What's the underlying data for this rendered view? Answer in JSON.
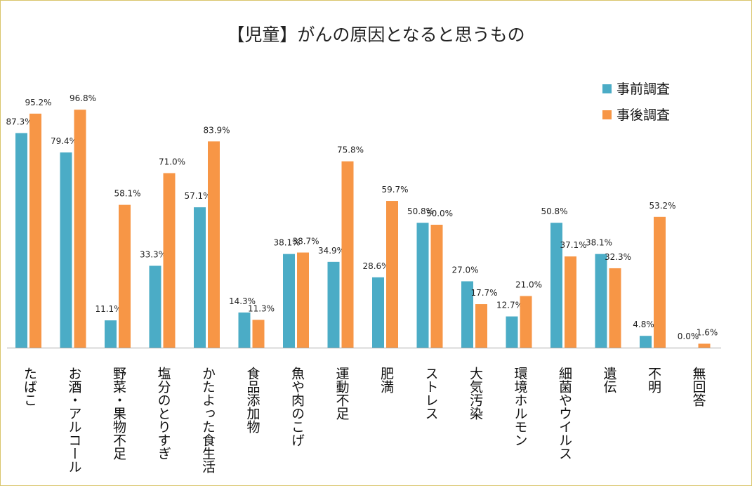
{
  "chart_data": {
    "type": "bar",
    "title": "【児童】がんの原因となると思うもの",
    "xlabel": "",
    "ylabel": "",
    "ylim": [
      0,
      100
    ],
    "grid": false,
    "legend": "top-right",
    "categories": [
      "たばこ",
      "お酒・アルコール",
      "野菜・果物不足",
      "塩分のとりすぎ",
      "かたよった食生活",
      "食品添加物",
      "魚や肉のこげ",
      "運動不足",
      "肥満",
      "ストレス",
      "大気汚染",
      "環境ホルモン",
      "細菌やウイルス",
      "遺伝",
      "不明",
      "無回答"
    ],
    "series": [
      {
        "name": "事前調査",
        "color": "#4bacc6",
        "values": [
          87.3,
          79.4,
          11.1,
          33.3,
          57.1,
          14.3,
          38.1,
          34.9,
          28.6,
          50.8,
          27.0,
          12.7,
          50.8,
          38.1,
          4.8,
          0.0
        ],
        "labels": [
          "87.3%",
          "79.4%",
          "11.1%",
          "33.3%",
          "57.1%",
          "14.3%",
          "38.1%",
          "34.9%",
          "28.6%",
          "50.8%",
          "27.0%",
          "12.7%",
          "50.8%",
          "38.1%",
          "4.8%",
          "0.0%"
        ]
      },
      {
        "name": "事後調査",
        "color": "#f79646",
        "values": [
          95.2,
          96.8,
          58.1,
          71.0,
          83.9,
          11.3,
          38.7,
          75.8,
          59.7,
          50.0,
          17.7,
          21.0,
          37.1,
          32.3,
          53.2,
          1.6
        ],
        "labels": [
          "95.2%",
          "96.8%",
          "58.1%",
          "71.0%",
          "83.9%",
          "11.3%",
          "38.7%",
          "75.8%",
          "59.7%",
          "50.0%",
          "17.7%",
          "21.0%",
          "37.1%",
          "32.3%",
          "53.2%",
          "1.6%"
        ]
      }
    ]
  }
}
